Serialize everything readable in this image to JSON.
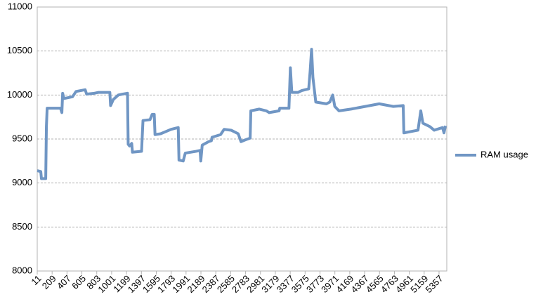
{
  "chart_data": {
    "type": "line",
    "x": [
      11,
      58,
      67,
      124,
      133,
      143,
      321,
      339,
      349,
      367,
      480,
      527,
      649,
      668,
      771,
      827,
      977,
      987,
      1024,
      1090,
      1146,
      1212,
      1221,
      1240,
      1268,
      1278,
      1399,
      1418,
      1512,
      1540,
      1568,
      1578,
      1653,
      1793,
      1887,
      1897,
      1953,
      1981,
      2122,
      2178,
      2187,
      2206,
      2291,
      2328,
      2337,
      2450,
      2497,
      2591,
      2685,
      2722,
      2778,
      2844,
      2853,
      2966,
      3060,
      3097,
      3229,
      3238,
      3360,
      3379,
      3398,
      3482,
      3529,
      3623,
      3642,
      3661,
      3679,
      3717,
      3858,
      3904,
      3942,
      3970,
      4026,
      4186,
      4374,
      4561,
      4749,
      4880,
      4889,
      5077,
      5114,
      5142,
      5236,
      5292,
      5404,
      5423,
      5442
    ],
    "series": [
      {
        "name": "RAM usage",
        "color": "#7096c4",
        "values": [
          9140,
          9130,
          9050,
          9050,
          9640,
          9850,
          9850,
          9800,
          10020,
          9960,
          9980,
          10040,
          10060,
          10010,
          10020,
          10030,
          10030,
          9880,
          9950,
          10000,
          10010,
          10020,
          9440,
          9420,
          9450,
          9350,
          9360,
          9710,
          9720,
          9780,
          9780,
          9550,
          9560,
          9610,
          9630,
          9260,
          9250,
          9340,
          9360,
          9370,
          9250,
          9430,
          9470,
          9480,
          9520,
          9550,
          9610,
          9600,
          9560,
          9470,
          9490,
          9510,
          9820,
          9840,
          9820,
          9800,
          9820,
          9850,
          9850,
          10310,
          10030,
          10030,
          10050,
          10070,
          10270,
          10520,
          10200,
          9920,
          9900,
          9920,
          10000,
          9870,
          9820,
          9840,
          9870,
          9900,
          9870,
          9880,
          9570,
          9600,
          9820,
          9680,
          9640,
          9600,
          9630,
          9570,
          9650
        ]
      }
    ],
    "xlim": [
      11,
      5460
    ],
    "xticks": [
      11,
      209,
      407,
      605,
      803,
      1001,
      1199,
      1397,
      1595,
      1793,
      1991,
      2189,
      2387,
      2585,
      2783,
      2981,
      3179,
      3377,
      3575,
      3773,
      3971,
      4169,
      4367,
      4565,
      4763,
      4961,
      5159,
      5357
    ],
    "ylim": [
      8000,
      11000
    ],
    "yticks": [
      8000,
      8500,
      9000,
      9500,
      10000,
      10500,
      11000
    ],
    "grid": true,
    "legend": "right"
  }
}
